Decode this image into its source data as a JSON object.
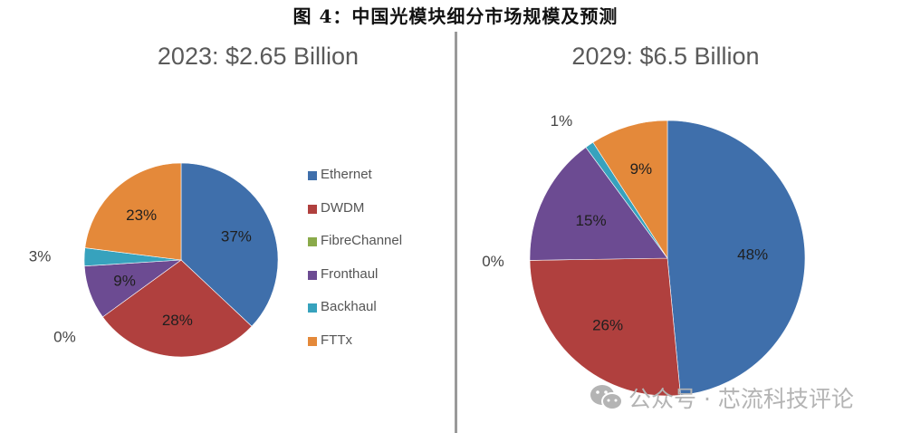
{
  "figure_title": "图 4：中国光模块细分市场规模及预测",
  "watermark": "公众号 · 芯流科技评论",
  "legend": [
    {
      "name": "Ethernet",
      "color": "#3f6fab"
    },
    {
      "name": "DWDM",
      "color": "#b0403e"
    },
    {
      "name": "FibreChannel",
      "color": "#8aaa4a"
    },
    {
      "name": "Fronthaul",
      "color": "#6c4b92"
    },
    {
      "name": "Backhaul",
      "color": "#37a2bd"
    },
    {
      "name": "FTTx",
      "color": "#e4893a"
    }
  ],
  "chart_data": [
    {
      "type": "pie",
      "title": "2023: $2.65 Billion",
      "categories": [
        "Ethernet",
        "DWDM",
        "FibreChannel",
        "Fronthaul",
        "Backhaul",
        "FTTx"
      ],
      "values": [
        37,
        28,
        0,
        9,
        3,
        23
      ],
      "labels": [
        "37%",
        "28%",
        "0%",
        "9%",
        "3%",
        "23%"
      ],
      "start_angle_deg": 0,
      "direction": "clockwise"
    },
    {
      "type": "pie",
      "title": "2029: $6.5 Billion",
      "categories": [
        "Ethernet",
        "DWDM",
        "FibreChannel",
        "Fronthaul",
        "Backhaul",
        "FTTx"
      ],
      "values": [
        48,
        26,
        0,
        15,
        1,
        9
      ],
      "labels": [
        "48%",
        "26%",
        "0%",
        "15%",
        "1%",
        "9%"
      ],
      "start_angle_deg": 0,
      "direction": "clockwise"
    }
  ]
}
